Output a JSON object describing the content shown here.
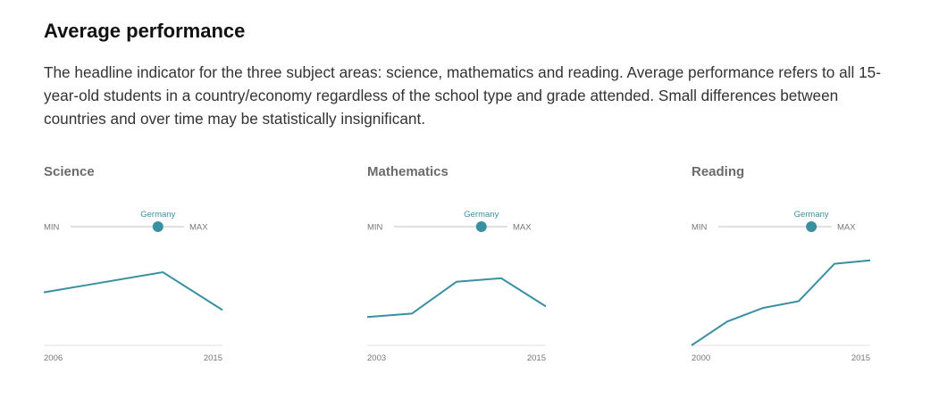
{
  "header": {
    "title": "Average performance",
    "description": "The headline indicator for the three subject areas: science, mathematics and reading. Average performance refers to all 15-year-old students in a country/economy regardless of the school type and grade attended. Small differences between countries and over time may be statistically insignificant."
  },
  "accent_color": "#3a8fa0",
  "chart_data": [
    {
      "type": "line",
      "title": "Science",
      "slider": {
        "min_label": "MIN",
        "max_label": "MAX",
        "country": "Germany",
        "position": 0.77
      },
      "x": [
        2006,
        2009,
        2012,
        2015
      ],
      "x_tick_labels": [
        "2006",
        "2015"
      ],
      "y_range": [
        495,
        530
      ],
      "series": [
        {
          "values": [
            516,
            520,
            524,
            509
          ]
        }
      ]
    },
    {
      "type": "line",
      "title": "Mathematics",
      "slider": {
        "min_label": "MIN",
        "max_label": "MAX",
        "country": "Germany",
        "position": 0.77
      },
      "x": [
        2003,
        2006,
        2009,
        2012,
        2015
      ],
      "x_tick_labels": [
        "2003",
        "2015"
      ],
      "y_range": [
        495,
        520
      ],
      "series": [
        {
          "values": [
            503,
            504,
            513,
            514,
            506
          ]
        }
      ]
    },
    {
      "type": "line",
      "title": "Reading",
      "slider": {
        "min_label": "MIN",
        "max_label": "MAX",
        "country": "Germany",
        "position": 0.82
      },
      "x": [
        2000,
        2003,
        2006,
        2009,
        2012,
        2015
      ],
      "x_tick_labels": [
        "2000",
        "2015"
      ],
      "y_range": [
        484,
        510
      ],
      "series": [
        {
          "values": [
            484,
            491,
            495,
            497,
            508,
            509
          ]
        }
      ]
    }
  ]
}
